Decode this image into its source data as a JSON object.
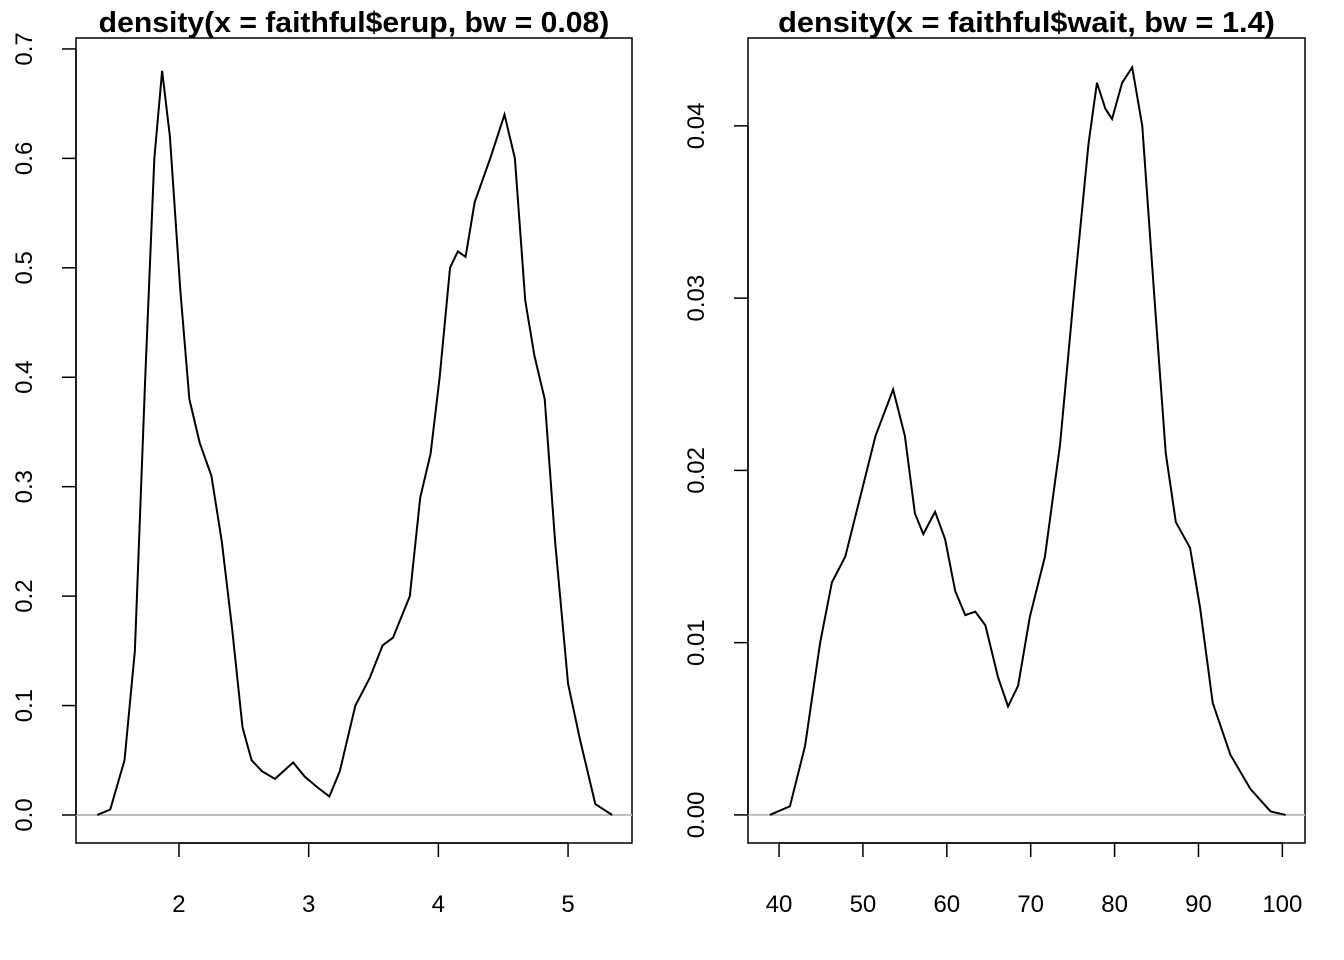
{
  "chart_data": [
    {
      "type": "line",
      "title": "density(x = faithful$erup, bw = 0.08)",
      "x": [
        1.37,
        1.47,
        1.58,
        1.66,
        1.74,
        1.81,
        1.87,
        1.93,
        2.01,
        2.08,
        2.16,
        2.25,
        2.33,
        2.41,
        2.49,
        2.56,
        2.64,
        2.74,
        2.88,
        2.97,
        3.07,
        3.16,
        3.24,
        3.36,
        3.47,
        3.57,
        3.65,
        3.78,
        3.86,
        3.94,
        4.01,
        4.09,
        4.15,
        4.21,
        4.28,
        4.4,
        4.51,
        4.59,
        4.67,
        4.74,
        4.82,
        4.9,
        5.0,
        5.09,
        5.21,
        5.34
      ],
      "series": [
        {
          "color": "#000000",
          "values": [
            0,
            0.005,
            0.05,
            0.15,
            0.4,
            0.6,
            0.68,
            0.62,
            0.48,
            0.38,
            0.34,
            0.31,
            0.25,
            0.17,
            0.08,
            0.05,
            0.04,
            0.033,
            0.048,
            0.035,
            0.025,
            0.017,
            0.04,
            0.1,
            0.125,
            0.155,
            0.162,
            0.2,
            0.29,
            0.33,
            0.4,
            0.5,
            0.515,
            0.51,
            0.56,
            0.6,
            0.64,
            0.6,
            0.47,
            0.42,
            0.38,
            0.25,
            0.12,
            0.07,
            0.01,
            0
          ]
        }
      ],
      "xlim": [
        1.206,
        5.493
      ],
      "xticks": [
        2,
        3,
        4,
        5
      ],
      "ylim": [
        -0.0256,
        0.71
      ],
      "yticks": [
        {
          "value": 0,
          "label": "0.0"
        },
        0.1,
        0.2,
        0.3,
        0.4,
        0.5,
        0.6,
        0.7
      ],
      "hline": 0,
      "hline_color": "#bebebe"
    },
    {
      "type": "line",
      "title": "density(x = faithful$wait, bw = 1.4)",
      "x": [
        38.9,
        41.3,
        43.1,
        44.9,
        46.3,
        47.9,
        49.7,
        51.5,
        53.6,
        55.0,
        56.2,
        57.2,
        58.6,
        59.8,
        61.0,
        62.2,
        63.4,
        64.6,
        66.1,
        67.3,
        68.5,
        69.9,
        71.7,
        73.5,
        75.3,
        76.9,
        77.9,
        78.9,
        79.7,
        80.9,
        82.1,
        83.3,
        84.9,
        86.1,
        87.3,
        89.0,
        90.2,
        91.7,
        93.8,
        96.2,
        98.6,
        100.4
      ],
      "series": [
        {
          "color": "#000000",
          "values": [
            0,
            0.0005,
            0.004,
            0.01,
            0.0135,
            0.015,
            0.0185,
            0.022,
            0.0247,
            0.022,
            0.0175,
            0.0163,
            0.0176,
            0.016,
            0.013,
            0.0116,
            0.0118,
            0.011,
            0.008,
            0.0063,
            0.0075,
            0.0115,
            0.015,
            0.0215,
            0.031,
            0.039,
            0.0425,
            0.041,
            0.0404,
            0.0425,
            0.0434,
            0.04,
            0.029,
            0.021,
            0.017,
            0.0155,
            0.012,
            0.0065,
            0.0035,
            0.0015,
            0.0002,
            0
          ]
        }
      ],
      "xlim": [
        36.3,
        102.7
      ],
      "xticks": [
        40,
        50,
        60,
        70,
        80,
        90,
        100
      ],
      "ylim": [
        -0.00163,
        0.0451
      ],
      "yticks": [
        {
          "value": 0,
          "label": "0.00"
        },
        0.01,
        0.02,
        0.03,
        0.04
      ],
      "hline": 0,
      "hline_color": "#bebebe"
    }
  ]
}
